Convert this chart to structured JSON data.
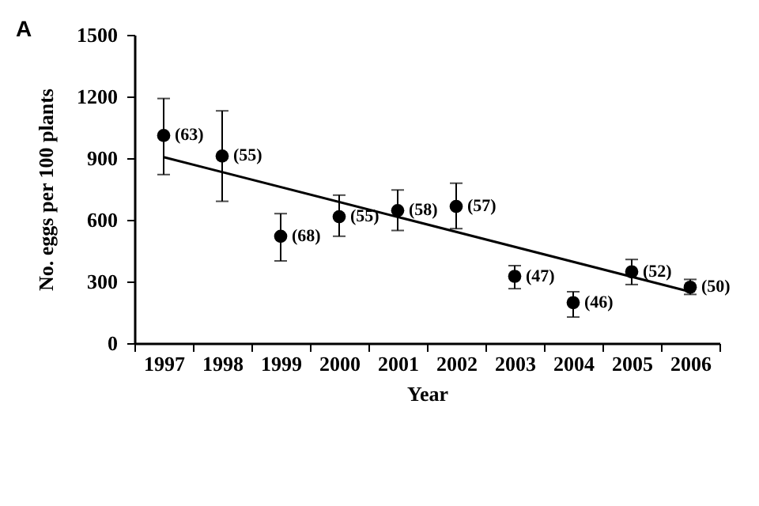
{
  "chart_data": {
    "type": "scatter",
    "title": "A",
    "xlabel": "Year",
    "ylabel": "No. eggs per 100 plants",
    "categories": [
      "1997",
      "1998",
      "1999",
      "2000",
      "2001",
      "2002",
      "2003",
      "2004",
      "2005",
      "2006"
    ],
    "series": [
      {
        "marker": "circle",
        "color": "#000000",
        "values": [
          1010,
          910,
          520,
          615,
          645,
          665,
          325,
          197,
          347,
          272
        ],
        "errors": [
          [
            820,
            1190
          ],
          [
            690,
            1130
          ],
          [
            400,
            630
          ],
          [
            520,
            720
          ],
          [
            548,
            745
          ],
          [
            557,
            778
          ],
          [
            265,
            377
          ],
          [
            127,
            250
          ],
          [
            285,
            407
          ],
          [
            237,
            310
          ]
        ]
      },
      {
        "type": "line",
        "marker": "none",
        "color": "#000000",
        "values": [
          905,
          null,
          null,
          null,
          null,
          null,
          null,
          null,
          null,
          250
        ]
      }
    ],
    "ylim": [
      0,
      1500
    ],
    "yticks": [
      0,
      300,
      600,
      900,
      1200,
      1500
    ],
    "grid": false,
    "line_style": "solid",
    "annotations": [
      {
        "text": "(63)",
        "x": "1997",
        "y": 1010
      },
      {
        "text": "(55)",
        "x": "1998",
        "y": 910
      },
      {
        "text": "(68)",
        "x": "1999",
        "y": 520
      },
      {
        "text": "(55)",
        "x": "2000",
        "y": 615
      },
      {
        "text": "(58)",
        "x": "2001",
        "y": 645
      },
      {
        "text": "(57)",
        "x": "2002",
        "y": 665
      },
      {
        "text": "(47)",
        "x": "2003",
        "y": 325
      },
      {
        "text": "(46)",
        "x": "2004",
        "y": 197
      },
      {
        "text": "(52)",
        "x": "2005",
        "y": 347
      },
      {
        "text": "(50)",
        "x": "2006",
        "y": 272
      }
    ]
  }
}
